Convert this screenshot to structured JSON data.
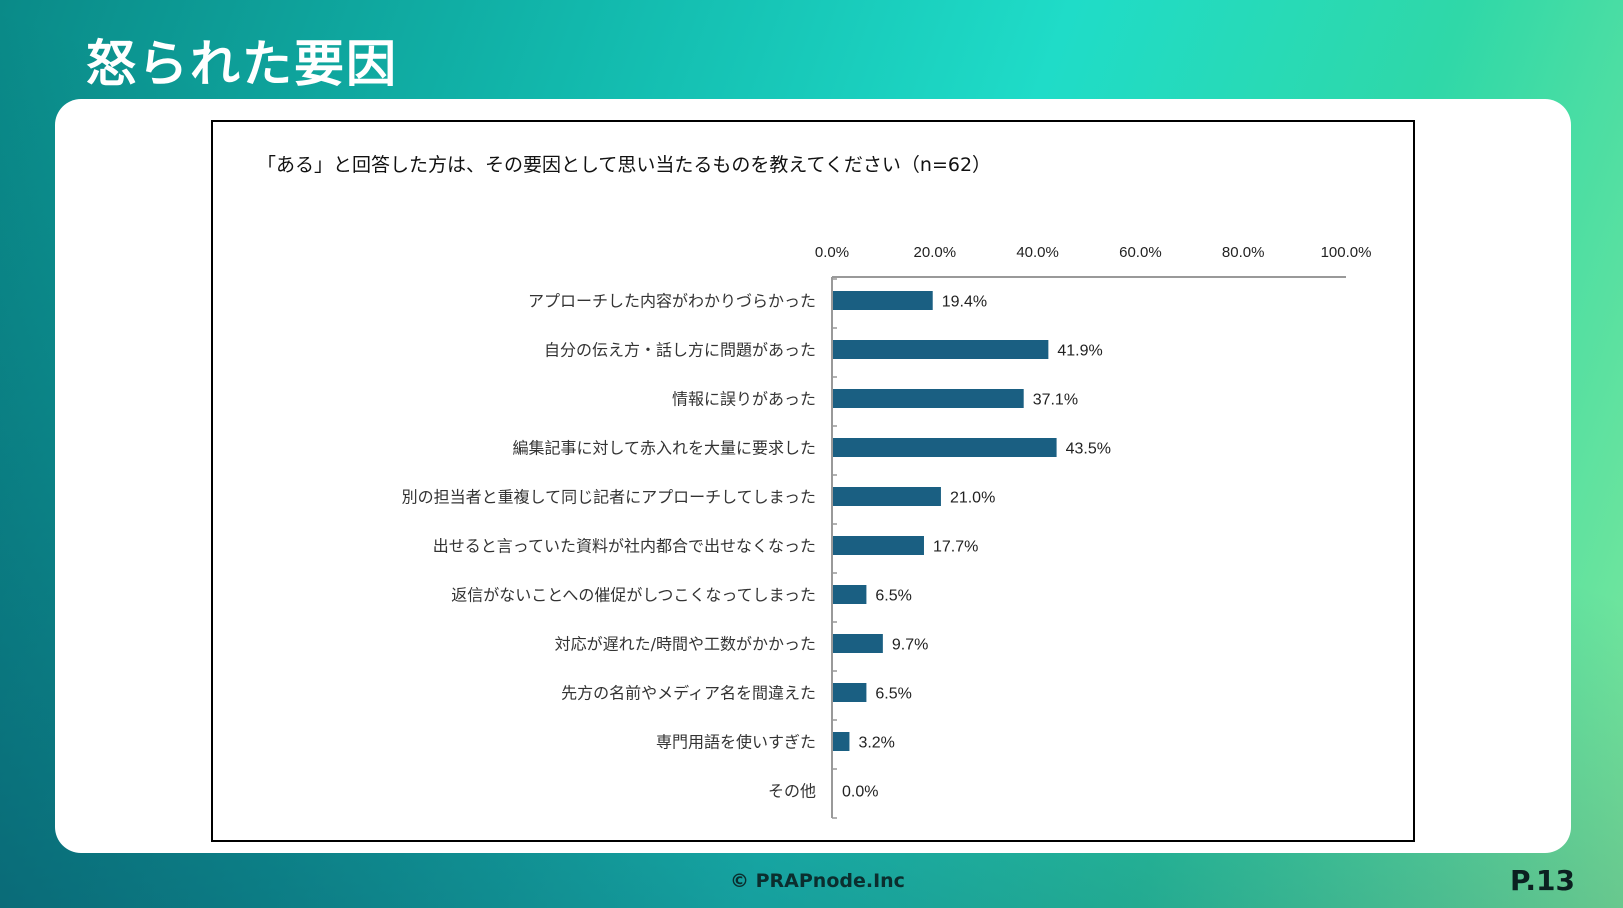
{
  "header": {
    "title": "怒られた要因"
  },
  "footer": {
    "copyright": "© PRAPnode.Inc",
    "page": "P.13"
  },
  "colors": {
    "bar": "#1a5f82",
    "axis": "#999999"
  },
  "chart_data": {
    "type": "bar",
    "orientation": "horizontal",
    "title": "「ある」と回答した方は、その要因として思い当たるものを教えてください（n=62）",
    "xlabel": "",
    "ylabel": "",
    "xlim": [
      0,
      100
    ],
    "ticks": [
      "0.0%",
      "20.0%",
      "40.0%",
      "60.0%",
      "80.0%",
      "100.0%"
    ],
    "tick_values": [
      0,
      20,
      40,
      60,
      80,
      100
    ],
    "categories": [
      "アプローチした内容がわかりづらかった",
      "自分の伝え方・話し方に問題があった",
      "情報に誤りがあった",
      "編集記事に対して赤入れを大量に要求した",
      "別の担当者と重複して同じ記者にアプローチしてしまった",
      "出せると言っていた資料が社内都合で出せなくなった",
      "返信がないことへの催促がしつこくなってしまった",
      "対応が遅れた/時間や工数がかかった",
      "先方の名前やメディア名を間違えた",
      "専門用語を使いすぎた",
      "その他"
    ],
    "values": [
      19.4,
      41.9,
      37.1,
      43.5,
      21.0,
      17.7,
      6.5,
      9.7,
      6.5,
      3.2,
      0.0
    ],
    "labels": [
      "19.4%",
      "41.9%",
      "37.1%",
      "43.5%",
      "21.0%",
      "17.7%",
      "6.5%",
      "9.7%",
      "6.5%",
      "3.2%",
      "0.0%"
    ],
    "grid": false,
    "legend": "none"
  }
}
